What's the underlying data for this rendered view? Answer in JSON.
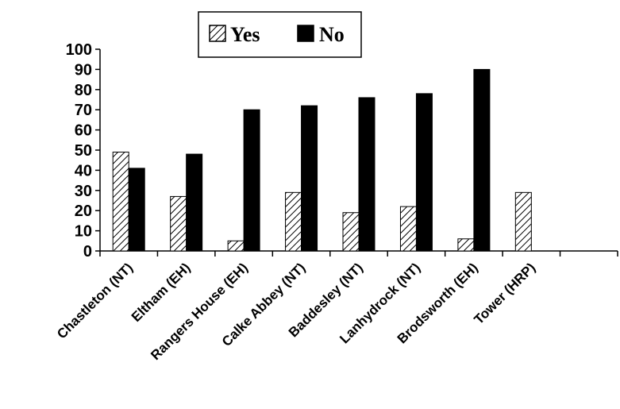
{
  "chart_data": {
    "type": "bar",
    "title": "",
    "xlabel": "",
    "ylabel": "",
    "categories": [
      "Chastleton (NT)",
      "Eltham (EH)",
      "Rangers House (EH)",
      "Calke Abbey (NT)",
      "Baddesley (NT)",
      "Lanhydrock (NT)",
      "Brodsworth (EH)",
      "Tower (HRP)",
      ""
    ],
    "series": [
      {
        "name": "Yes",
        "pattern": "diagonal-hatch",
        "color": "#000000",
        "values": [
          49,
          27,
          5,
          29,
          19,
          22,
          6,
          29,
          null
        ]
      },
      {
        "name": "No",
        "pattern": "solid",
        "color": "#000000",
        "values": [
          41,
          48,
          70,
          72,
          76,
          78,
          90,
          null,
          null
        ]
      }
    ],
    "ylim": [
      0,
      100
    ],
    "yticks": [
      0,
      10,
      20,
      30,
      40,
      50,
      60,
      70,
      80,
      90,
      100
    ],
    "grid": false,
    "legend_position": "top-center"
  }
}
